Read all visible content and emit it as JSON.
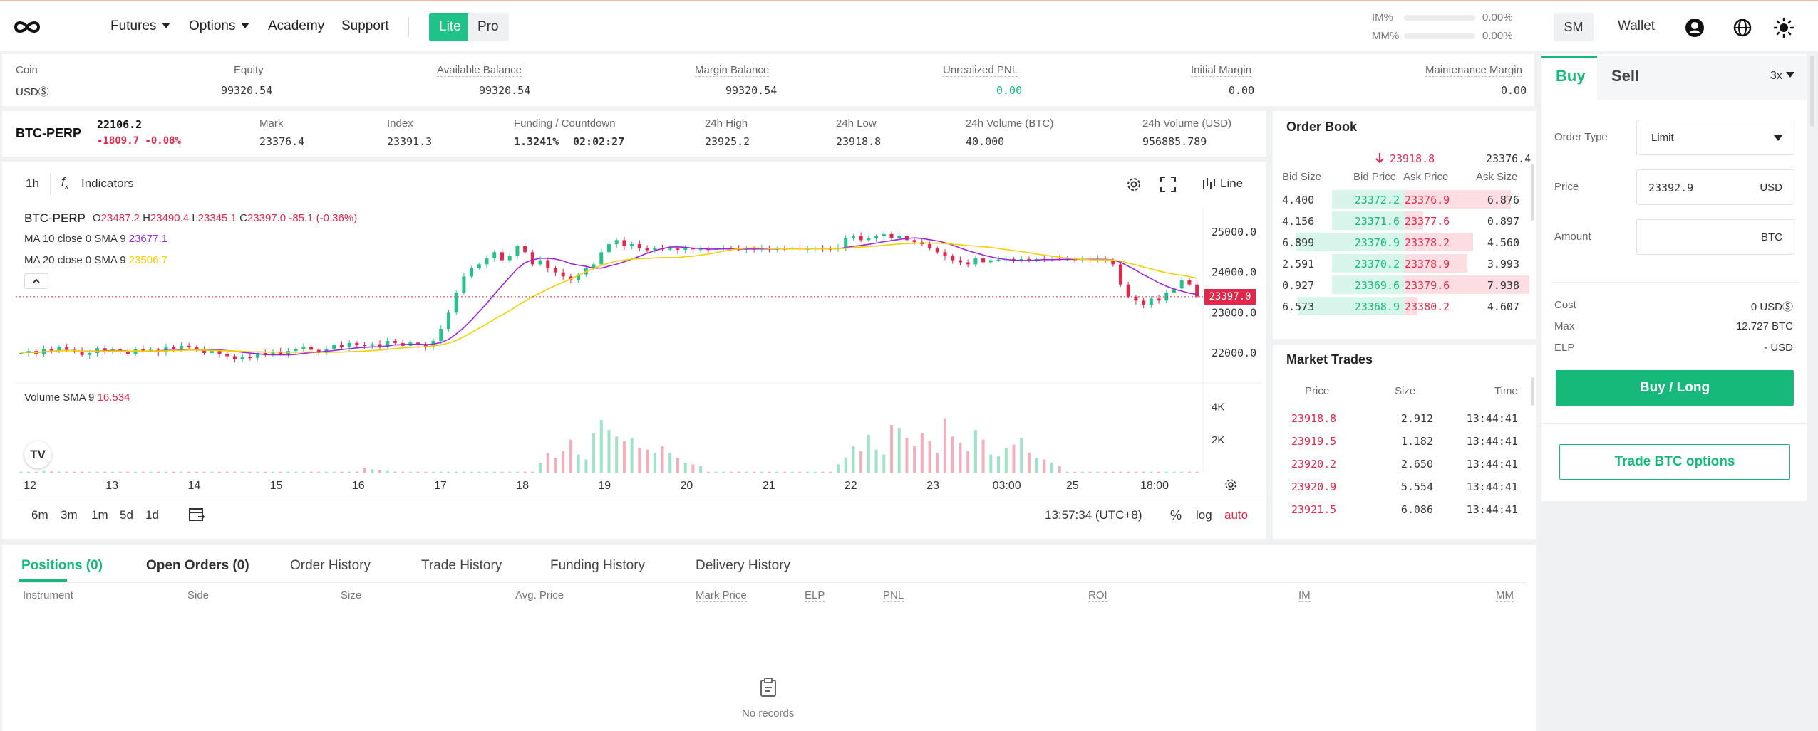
{
  "header": {
    "nav": [
      "Futures",
      "Options",
      "Academy",
      "Support"
    ],
    "mode": {
      "lite": "Lite",
      "pro": "Pro"
    },
    "im_label": "IM%",
    "im_value": "0.00%",
    "im_level": 0,
    "mm_label": "MM%",
    "mm_value": "0.00%",
    "mm_level": 0,
    "avatar_initials": "SM",
    "wallet_label": "Wallet"
  },
  "account": {
    "columns": [
      {
        "label": "Coin",
        "value": "USDⓈ"
      },
      {
        "label": "Equity",
        "value": "99320.54"
      },
      {
        "label": "Available Balance",
        "value": "99320.54"
      },
      {
        "label": "Margin Balance",
        "value": "99320.54"
      },
      {
        "label": "Unrealized PNL",
        "value": "0.00"
      },
      {
        "label": "Initial Margin",
        "value": "0.00"
      },
      {
        "label": "Maintenance Margin",
        "value": "0.00"
      }
    ]
  },
  "ticker": {
    "symbol": "BTC-PERP",
    "last": "22106.2",
    "change": "-1809.7 -0.08%",
    "stats": [
      {
        "label": "Mark",
        "value": "23376.4"
      },
      {
        "label": "Index",
        "value": "23391.3"
      },
      {
        "label": "Funding / Countdown",
        "value": "1.3241%",
        "value2": "02:02:27"
      },
      {
        "label": "24h High",
        "value": "23925.2"
      },
      {
        "label": "24h Low",
        "value": "23918.8"
      },
      {
        "label": "24h Volume (BTC)",
        "value": "40.000"
      },
      {
        "label": "24h Volume (USD)",
        "value": "956885.789"
      }
    ]
  },
  "chart_toolbar": {
    "interval": "1h",
    "indicators": "Indicators",
    "style": "Line"
  },
  "chart_legend": {
    "symbol": "BTC-PERP",
    "ohlc": {
      "o_label": "O",
      "o": "23487.2",
      "h_label": "H",
      "h": "23490.4",
      "l_label": "L",
      "l": "23345.1",
      "c_label": "C",
      "c": "23397.0",
      "chg": "-85.1 (-0.36%)"
    },
    "ma10": {
      "label": "MA 10 close 0 SMA 9",
      "value": "23677.1",
      "color": "#9b27d8"
    },
    "ma20": {
      "label": "MA 20 close 0 SMA 9",
      "value": "23506.7",
      "color": "#f5d000"
    },
    "volume": {
      "label": "Volume SMA 9",
      "value": "16.534"
    }
  },
  "chart_data": {
    "type": "candlestick",
    "price_axis": [
      "25000.0",
      "24000.0",
      "23000.0",
      "22000.0"
    ],
    "ylim": [
      21400,
      25600
    ],
    "last_price": "23397.0",
    "volume_axis": [
      "4K",
      "2K"
    ],
    "x_ticks": [
      "12",
      "13",
      "14",
      "15",
      "16",
      "17",
      "18",
      "19",
      "20",
      "21",
      "22",
      "23",
      "03:00",
      "25",
      "18:00"
    ],
    "x_tick_positions": [
      0,
      1,
      2,
      3,
      4,
      5,
      6,
      7,
      8,
      9,
      10,
      11,
      11.9,
      12.7,
      13.7
    ],
    "closes": [
      22000,
      22050,
      21980,
      22100,
      22060,
      22150,
      22080,
      22040,
      21950,
      22000,
      22120,
      22050,
      22090,
      22030,
      21980,
      22100,
      22060,
      22080,
      22020,
      22150,
      22100,
      22180,
      22140,
      22080,
      22000,
      22050,
      21980,
      21920,
      21850,
      21900,
      21880,
      22000,
      21950,
      22030,
      21980,
      22050,
      22100,
      22150,
      22080,
      22000,
      22100,
      22200,
      22150,
      22250,
      22200,
      22180,
      22220,
      22160,
      22300,
      22250,
      22180,
      22260,
      22200,
      22150,
      22300,
      22600,
      23000,
      23500,
      23900,
      24100,
      24200,
      24350,
      24500,
      24300,
      24400,
      24650,
      24500,
      24200,
      24300,
      24100,
      24000,
      23900,
      23800,
      23950,
      24100,
      24200,
      24500,
      24700,
      24800,
      24650,
      24700,
      24600,
      24550,
      24600,
      24580,
      24590,
      24560,
      24600,
      24570,
      24580,
      24560,
      24590,
      24600,
      24580,
      24570,
      24590,
      24580,
      24600,
      24570,
      24590,
      24580,
      24600,
      24580,
      24590,
      24600,
      24590,
      24580,
      24600,
      24850,
      24900,
      24800,
      24850,
      24900,
      24950,
      24850,
      24900,
      24800,
      24750,
      24700,
      24600,
      24500,
      24400,
      24300,
      24250,
      24200,
      24350,
      24250,
      24300,
      24320,
      24330,
      24320,
      24330,
      24320,
      24330,
      24320,
      24330,
      24320,
      24330,
      24320,
      24330,
      24320,
      24330,
      24300,
      24200,
      23700,
      23400,
      23300,
      23200,
      23350,
      23300,
      23500,
      23600,
      23800,
      23700,
      23400
    ],
    "volumes": [
      0.05,
      0.05,
      0.05,
      0.1,
      0.08,
      0.05,
      0.05,
      0.05,
      0.05,
      0.05,
      0.05,
      0.05,
      0.05,
      0.05,
      0.05,
      0.05,
      0.05,
      0.05,
      0.05,
      0.05,
      0.05,
      0.05,
      0.05,
      0.05,
      0.05,
      0.05,
      0.05,
      0.05,
      0.05,
      0.05,
      0.05,
      0.05,
      0.05,
      0.05,
      0.05,
      0.05,
      0.05,
      0.05,
      0.05,
      0.05,
      0.05,
      0.05,
      0.05,
      0.05,
      0.05,
      0.3,
      0.2,
      0.15,
      0.1,
      0.05,
      0.05,
      0.05,
      0.05,
      0.05,
      0.05,
      0.05,
      0.05,
      0.05,
      0.05,
      0.05,
      0.05,
      0.05,
      0.05,
      0.05,
      0.05,
      0.05,
      0.05,
      0.05,
      0.6,
      1.2,
      0.9,
      1.3,
      2.0,
      1.1,
      0.8,
      2.4,
      3.2,
      2.6,
      2.2,
      1.9,
      2.1,
      1.5,
      1.4,
      1.2,
      1.6,
      1.2,
      0.9,
      0.6,
      0.5,
      0.4,
      0.05,
      0.05,
      0.05,
      0.05,
      0.05,
      0.05,
      0.05,
      0.05,
      0.05,
      0.05,
      0.05,
      0.05,
      0.05,
      0.05,
      0.05,
      0.05,
      0.05,
      0.5,
      0.9,
      1.6,
      1.3,
      2.3,
      1.4,
      1.1,
      2.9,
      2.7,
      2.1,
      1.6,
      2.4,
      1.9,
      1.2,
      3.3,
      2.2,
      1.8,
      1.3,
      2.6,
      2.0,
      1.1,
      1.0,
      1.5,
      1.7,
      2.1,
      1.2,
      0.9,
      0.8,
      0.6,
      0.4,
      0.05,
      0.05,
      0.05,
      0.05,
      0.05,
      0.05,
      0.05,
      0.05,
      0.05,
      0.05,
      0.05,
      0.05,
      0.05,
      0.05,
      0.05,
      0.05,
      0.05,
      0.05,
      0.05,
      0.05,
      0.05,
      0.05,
      0.05,
      0.05,
      0.05,
      0.05
    ]
  },
  "chart_footer": {
    "ranges": [
      "6m",
      "3m",
      "1m",
      "5d",
      "1d"
    ],
    "time": "13:57:34 (UTC+8)",
    "pct": "%",
    "log": "log",
    "auto": "auto"
  },
  "orderbook": {
    "title": "Order Book",
    "last": "23918.8",
    "mark": "23376.4",
    "headers": [
      "Bid Size",
      "Bid Price",
      "Ask Price",
      "Ask Size"
    ],
    "rows": [
      {
        "bid_size": "4.400",
        "bid": "23372.2",
        "ask": "23376.9",
        "ask_size": "6.876",
        "bid_depth": 0.6,
        "ask_depth": 0.85
      },
      {
        "bid_size": "4.156",
        "bid": "23371.6",
        "ask": "23377.6",
        "ask_size": "0.897",
        "bid_depth": 0.6,
        "ask_depth": 0.15
      },
      {
        "bid_size": "6.899",
        "bid": "23370.9",
        "ask": "23378.2",
        "ask_size": "4.560",
        "bid_depth": 0.9,
        "ask_depth": 0.55
      },
      {
        "bid_size": "2.591",
        "bid": "23370.2",
        "ask": "23378.9",
        "ask_size": "3.993",
        "bid_depth": 0.6,
        "ask_depth": 0.5
      },
      {
        "bid_size": "0.927",
        "bid": "23369.6",
        "ask": "23379.6",
        "ask_size": "7.938",
        "bid_depth": 0.6,
        "ask_depth": 1.0
      },
      {
        "bid_size": "6.573",
        "bid": "23368.9",
        "ask": "23380.2",
        "ask_size": "4.607",
        "bid_depth": 0.88,
        "ask_depth": 0.1
      }
    ]
  },
  "market_trades": {
    "title": "Market Trades",
    "headers": [
      "Price",
      "Size",
      "Time"
    ],
    "rows": [
      {
        "price": "23918.8",
        "size": "2.912",
        "time": "13:44:41"
      },
      {
        "price": "23919.5",
        "size": "1.182",
        "time": "13:44:41"
      },
      {
        "price": "23920.2",
        "size": "2.650",
        "time": "13:44:41"
      },
      {
        "price": "23920.9",
        "size": "5.554",
        "time": "13:44:41"
      },
      {
        "price": "23921.5",
        "size": "6.086",
        "time": "13:44:41"
      }
    ]
  },
  "bottom": {
    "tabs": [
      "Positions (0)",
      "Open Orders (0)",
      "Order History",
      "Trade History",
      "Funding History",
      "Delivery History"
    ],
    "columns": [
      "Instrument",
      "Side",
      "Size",
      "Avg. Price",
      "Mark Price",
      "ELP",
      "PNL",
      "ROI",
      "IM",
      "MM"
    ],
    "empty": "No records"
  },
  "order_form": {
    "buy": "Buy",
    "sell": "Sell",
    "leverage": "3x",
    "order_type_label": "Order Type",
    "order_type": "Limit",
    "price_label": "Price",
    "price": "23392.9",
    "price_unit": "USD",
    "amount_label": "Amount",
    "amount_unit": "BTC",
    "cost_label": "Cost",
    "cost": "0 USDⓈ",
    "max_label": "Max",
    "max": "12.727 BTC",
    "elp_label": "ELP",
    "elp": "- USD",
    "submit": "Buy / Long",
    "options": "Trade BTC options"
  }
}
